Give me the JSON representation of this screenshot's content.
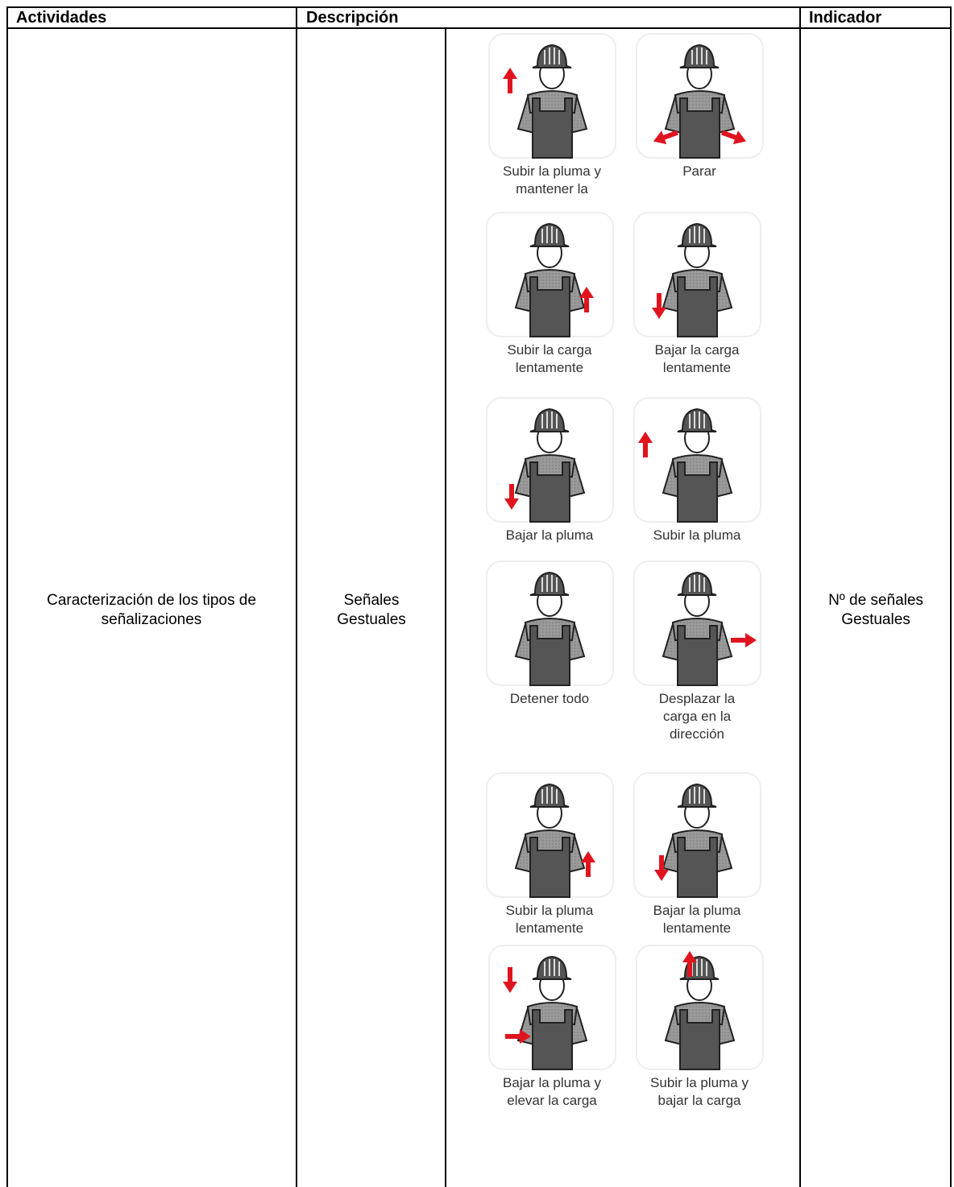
{
  "table": {
    "header": [
      "Actividades",
      "Descripción",
      "Indicador"
    ],
    "rows": [
      [
        "Caracterización de los tipos de señalizaciones",
        "Señales Gestuales",
        "Nº de señales Gestuales"
      ]
    ]
  },
  "signals": [
    {
      "caption": [
        "Subir la pluma y",
        "mantener la"
      ]
    },
    {
      "caption": [
        "Parar"
      ]
    },
    {
      "caption": [
        "Subir la carga",
        "lentamente"
      ]
    },
    {
      "caption": [
        "Bajar la carga",
        "lentamente"
      ]
    },
    {
      "caption": [
        "Bajar la pluma"
      ]
    },
    {
      "caption": [
        "Subir la pluma"
      ]
    },
    {
      "caption": [
        "Detener todo"
      ]
    },
    {
      "caption": [
        "Desplazar la",
        "carga en la",
        "dirección"
      ]
    },
    {
      "caption": [
        "Subir la pluma",
        "lentamente"
      ]
    },
    {
      "caption": [
        "Bajar la pluma",
        "lentamente"
      ]
    },
    {
      "caption": [
        "Bajar la pluma y",
        "elevar la carga"
      ]
    },
    {
      "caption": [
        "Subir la pluma y",
        "bajar la carga"
      ]
    }
  ]
}
